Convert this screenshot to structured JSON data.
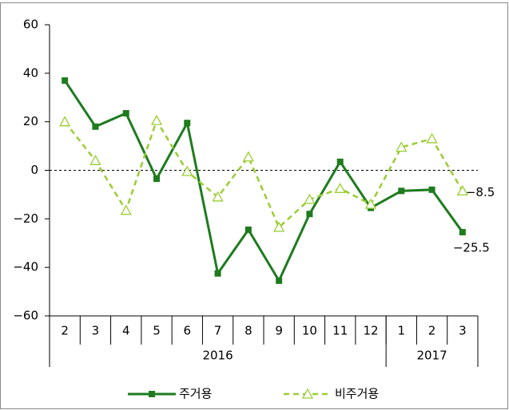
{
  "chart_data": {
    "type": "line",
    "categories": [
      "2",
      "3",
      "4",
      "5",
      "6",
      "7",
      "8",
      "9",
      "10",
      "11",
      "12",
      "1",
      "2",
      "3"
    ],
    "x_groups": [
      "2016",
      "2017"
    ],
    "series": [
      {
        "name": "주거용",
        "color": "#1e7b1e",
        "marker": "square",
        "dashed": false,
        "values": [
          37,
          18,
          23.5,
          -3.5,
          19.5,
          -42.5,
          -24.5,
          -45.5,
          -18,
          3.5,
          -15.5,
          -8.5,
          -8,
          -25.5
        ],
        "value_labels": [
          null,
          null,
          null,
          null,
          null,
          null,
          null,
          null,
          null,
          null,
          null,
          null,
          null,
          "−25.5"
        ]
      },
      {
        "name": "비주거용",
        "color": "#9acd32",
        "marker": "triangle",
        "dashed": true,
        "values": [
          20,
          4,
          -16.5,
          20.5,
          -0.5,
          -11,
          5.5,
          -23.5,
          -12,
          -7.5,
          -14,
          9.5,
          13,
          -8.5
        ],
        "value_labels": [
          null,
          null,
          null,
          null,
          null,
          null,
          null,
          null,
          null,
          null,
          null,
          null,
          null,
          "−8.5"
        ]
      }
    ],
    "ylim": [
      -60,
      60
    ],
    "yticks": [
      {
        "value": -60,
        "label": "−60"
      },
      {
        "value": -40,
        "label": "−40"
      },
      {
        "value": -20,
        "label": "−20"
      },
      0,
      20,
      40,
      60
    ],
    "zero_line": true,
    "grid": false,
    "legend": "bottom"
  }
}
